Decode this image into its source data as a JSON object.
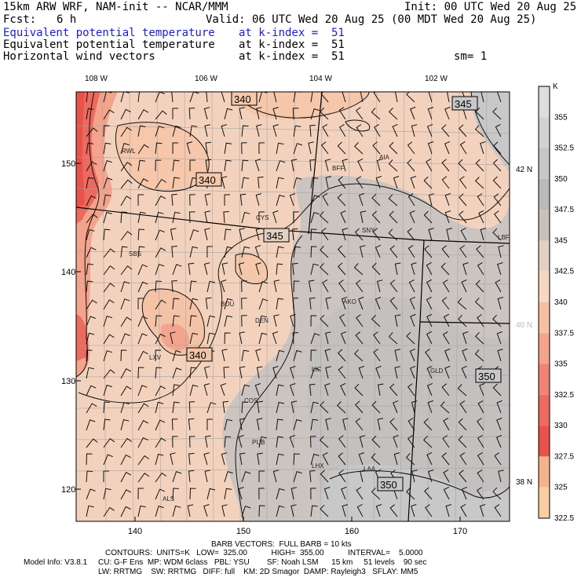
{
  "header": {
    "model": "15km ARW WRF, NAM-init -- NCAR/MMM",
    "init": "Init: 00 UTC Wed 20 Aug 25",
    "fcst_label": "Fcst:",
    "fcst_value": "6 h",
    "valid": "Valid: 06 UTC Wed 20 Aug 25 (00 MDT Wed 20 Aug 25)",
    "fields": [
      {
        "name": "Equivalent potential temperature",
        "level": "at k-index =  51",
        "color": "#1c1ccc"
      },
      {
        "name": "Equivalent potential temperature",
        "level": "at k-index =  51",
        "color": "#000000"
      },
      {
        "name": "Horizontal wind vectors",
        "level": "at k-index =  51",
        "color": "#000000"
      }
    ],
    "smoothing": "sm= 1"
  },
  "axes": {
    "top_lon": [
      "108 W",
      "106 W",
      "104 W",
      "102 W"
    ],
    "right_lat": [
      {
        "label": "42 N",
        "color": "#000000"
      },
      {
        "label": "40 N",
        "color": "#bbbbbb"
      },
      {
        "label": "38 N",
        "color": "#000000"
      }
    ],
    "left_grid": [
      "150",
      "140",
      "130",
      "120"
    ],
    "bottom_grid": [
      "140",
      "150",
      "160",
      "170"
    ]
  },
  "stations": [
    "RWL",
    "BFF",
    "AIA",
    "CYS",
    "SNY",
    "LBF",
    "SBS",
    "BOU",
    "DEN",
    "AKO",
    "LXV",
    "LIC",
    "GLD",
    "COS",
    "PUB",
    "LHX",
    "LAA",
    "ALS"
  ],
  "contour_labels": [
    "340",
    "345",
    "340",
    "345",
    "340",
    "350",
    "350"
  ],
  "colorbar": {
    "unit": "K",
    "levels": [
      "355",
      "352.5",
      "350",
      "347.5",
      "345",
      "342.5",
      "340",
      "337.5",
      "335",
      "332.5",
      "330",
      "327.5",
      "325",
      "322.5"
    ],
    "colors": [
      "#dedede",
      "#d2d2d2",
      "#c6c6c6",
      "#bababa",
      "#c8c0ba",
      "#e4d0c2",
      "#f6d8c2",
      "#f6c0a4",
      "#f4a38c",
      "#f08474",
      "#ec6a5e",
      "#e8524a",
      "#f3b48a",
      "#f8cfa2"
    ]
  },
  "footer": {
    "barb": "BARB VECTORS:  FULL BARB = 10 kts",
    "contours": "CONTOURS:  UNITS=K   LOW=  325.00           HIGH=  355.00           INTERVAL=    5.0000",
    "model_info_1": "Model Info: V3.8.1     CU: G-F Ens  MP: WDM 6class   PBL: YSU        SF: Noah LSM      15 km     51 levels    90 sec",
    "model_info_2": "LW: RRTMG    SW: RRTMG   DIFF: full    KM: 2D Smagor  DAMP: Rayleigh3   SFLAY: MM5"
  }
}
